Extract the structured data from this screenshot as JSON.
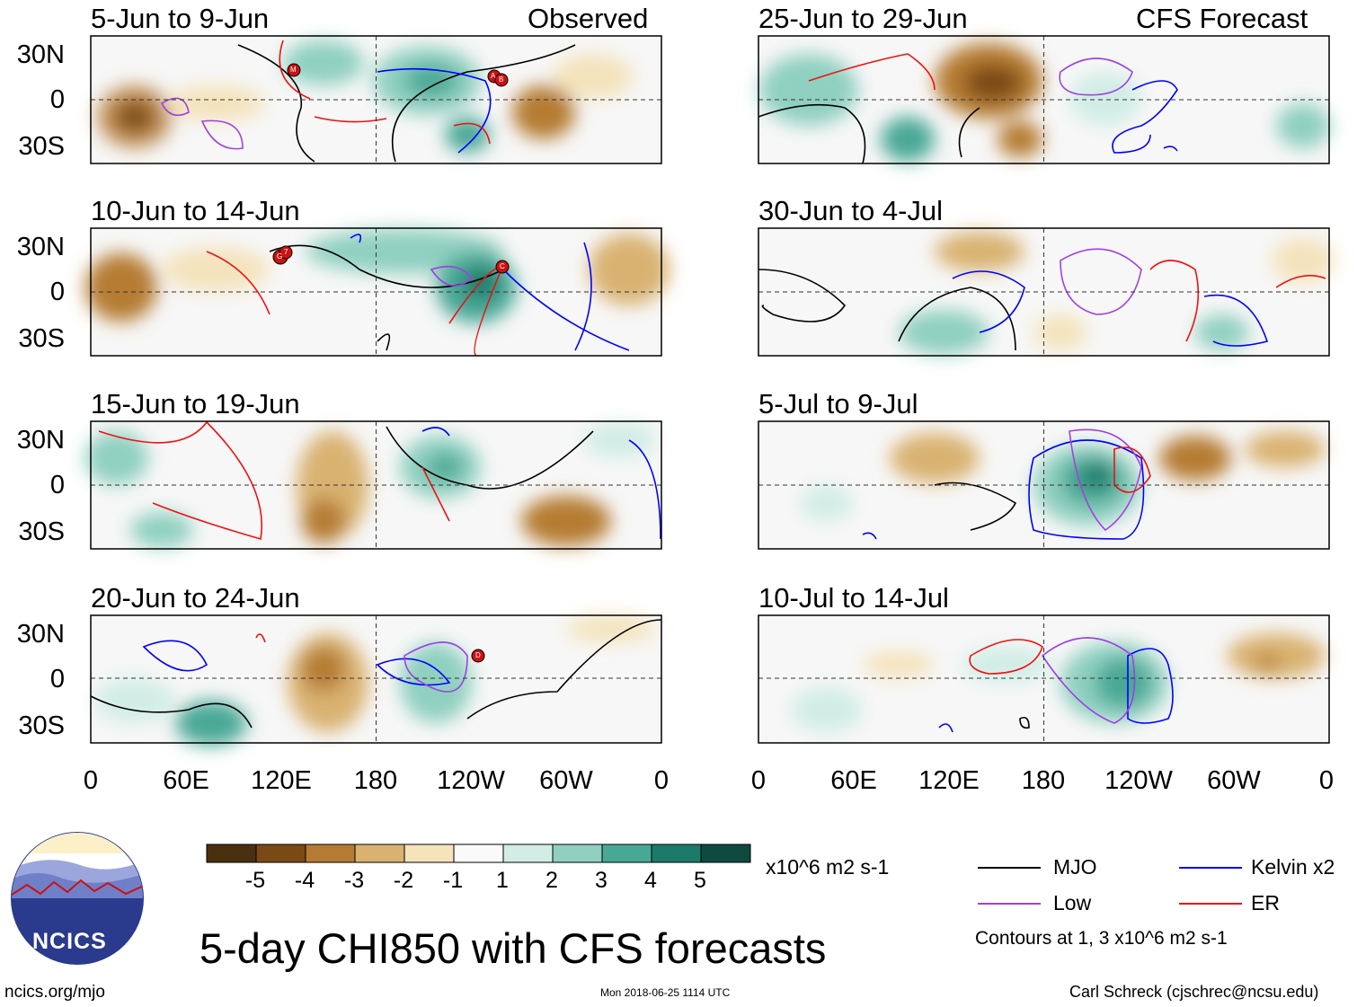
{
  "panels_observed": [
    {
      "date_range": "5-Jun to 9-Jun",
      "label": "Observed",
      "storms": [
        "M",
        "A",
        "B"
      ]
    },
    {
      "date_range": "10-Jun to 14-Jun",
      "label": "",
      "storms": [
        "G",
        "7",
        "C"
      ]
    },
    {
      "date_range": "15-Jun to 19-Jun",
      "label": "",
      "storms": []
    },
    {
      "date_range": "20-Jun to 24-Jun",
      "label": "",
      "storms": [
        "D"
      ]
    }
  ],
  "panels_forecast": [
    {
      "date_range": "25-Jun to 29-Jun",
      "label": "CFS Forecast"
    },
    {
      "date_range": "30-Jun to 4-Jul",
      "label": ""
    },
    {
      "date_range": "5-Jul to 9-Jul",
      "label": ""
    },
    {
      "date_range": "10-Jul to 14-Jul",
      "label": ""
    }
  ],
  "lat_labels": [
    "30N",
    "0",
    "30S"
  ],
  "lon_labels": [
    "0",
    "60E",
    "120E",
    "180",
    "120W",
    "60W",
    "0"
  ],
  "colorbar": {
    "ticks": [
      "-5",
      "-4",
      "-3",
      "-2",
      "-1",
      "1",
      "2",
      "3",
      "4",
      "5"
    ],
    "units": "x10^6 m2 s-1",
    "colors": [
      "#4a300e",
      "#7a4a14",
      "#b57b33",
      "#d9b271",
      "#f4e3bb",
      "#fafafa",
      "#d1ede6",
      "#8fd0c0",
      "#48a896",
      "#1c7a6a",
      "#0f4a40"
    ]
  },
  "legend": {
    "mjo": "MJO",
    "kelvin": "Kelvin x2",
    "low": "Low",
    "er": "ER",
    "note": "Contours at 1, 3 x10^6 m2 s-1",
    "colors": {
      "mjo": "#000000",
      "kelvin": "#0000ff",
      "low": "#a040e0",
      "er": "#ee1111"
    }
  },
  "title": "5-day CHI850 with CFS forecasts",
  "logo_text": "NCICS",
  "site": "ncics.org/mjo",
  "timestamp": "Mon 2018-06-25 1114 UTC",
  "credit": "Carl Schreck (cjschrec@ncsu.edu)"
}
